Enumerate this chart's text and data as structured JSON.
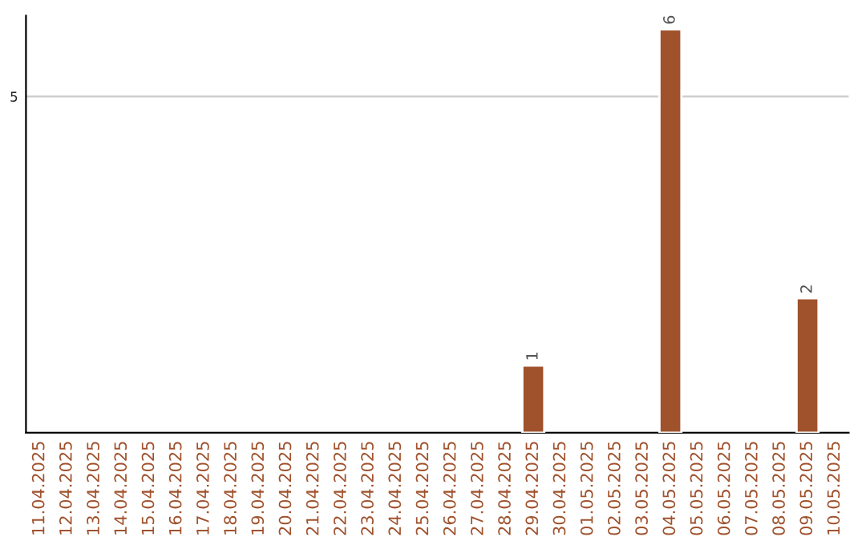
{
  "chart_data": {
    "type": "bar",
    "categories": [
      "11.04.2025",
      "12.04.2025",
      "13.04.2025",
      "14.04.2025",
      "15.04.2025",
      "16.04.2025",
      "17.04.2025",
      "18.04.2025",
      "19.04.2025",
      "20.04.2025",
      "21.04.2025",
      "22.04.2025",
      "23.04.2025",
      "24.04.2025",
      "25.04.2025",
      "26.04.2025",
      "27.04.2025",
      "28.04.2025",
      "29.04.2025",
      "30.04.2025",
      "01.05.2025",
      "02.05.2025",
      "03.05.2025",
      "04.05.2025",
      "05.05.2025",
      "06.05.2025",
      "07.05.2025",
      "08.05.2025",
      "09.05.2025",
      "10.05.2025"
    ],
    "values": [
      null,
      null,
      null,
      null,
      null,
      null,
      null,
      null,
      null,
      null,
      null,
      null,
      null,
      null,
      null,
      null,
      null,
      null,
      1,
      null,
      null,
      null,
      null,
      6,
      null,
      null,
      null,
      null,
      2,
      null
    ],
    "data_labels": true,
    "color": "#a0522d",
    "ylim": [
      0,
      6.2
    ],
    "yticks": [
      5
    ],
    "grid": "y"
  }
}
